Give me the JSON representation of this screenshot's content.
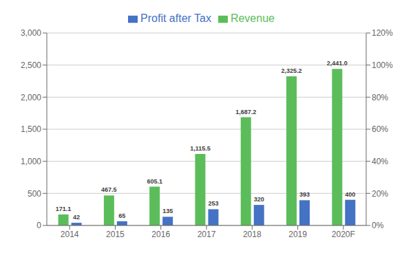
{
  "chart_data": {
    "type": "bar",
    "categories": [
      "2014",
      "2015",
      "2016",
      "2017",
      "2018",
      "2019",
      "2020F"
    ],
    "series": [
      {
        "name": "Revenue",
        "color": "#5BBD5A",
        "axis": "y",
        "values": [
          171.1,
          467.5,
          605.1,
          1115.5,
          1687.2,
          2325.2,
          2441.0
        ],
        "value_labels": [
          "171.1",
          "467.5",
          "605.1",
          "1,115.5",
          "1,687.2",
          "2,325.2",
          "2,441.0"
        ]
      },
      {
        "name": "Profit after Tax",
        "color": "#4472C4",
        "axis": "y",
        "values": [
          42,
          65,
          135,
          253,
          320,
          393,
          400
        ]
      }
    ],
    "ylim": [
      0,
      3000
    ],
    "yticks": [
      0,
      500,
      {
        "value": 1000,
        "label": "1,000"
      },
      {
        "value": 1500,
        "label": "1,500"
      },
      {
        "value": 2000,
        "label": "2,000"
      },
      {
        "value": 2500,
        "label": "2,500"
      },
      {
        "value": 3000,
        "label": "3,000"
      }
    ],
    "y2lim": [
      0,
      1.2
    ],
    "y2ticks": [
      {
        "value": 0.0,
        "label": "0%"
      },
      {
        "value": 0.2,
        "label": "20%"
      },
      {
        "value": 0.4,
        "label": "40%"
      },
      {
        "value": 0.6,
        "label": "60%"
      },
      {
        "value": 0.8,
        "label": "80%"
      },
      {
        "value": 1.0,
        "label": "100%"
      },
      {
        "value": 1.2,
        "label": "120%"
      }
    ],
    "grid": true,
    "legend": "top",
    "data_labels": true
  }
}
